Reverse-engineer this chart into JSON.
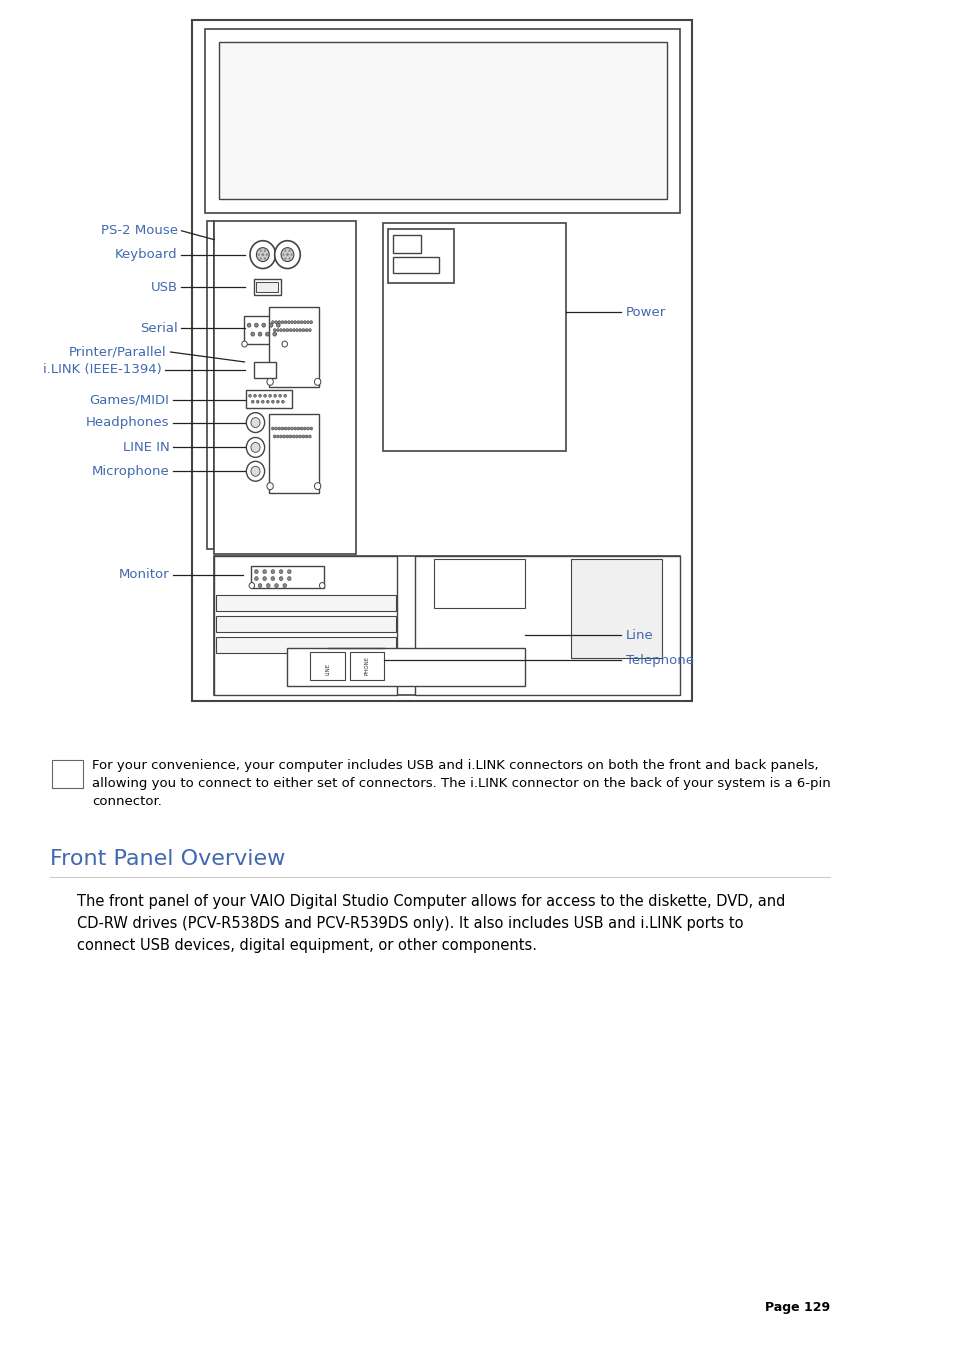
{
  "bg_color": "#ffffff",
  "label_color": "#4169B0",
  "line_color": "#222222",
  "diagram_color": "#444444",
  "note_text": "For your convenience, your computer includes USB and i.LINK connectors on both the front and back panels,\nallowing you to connect to either set of connectors. The i.LINK connector on the back of your system is a 6-pin\nconnector.",
  "section_title": "Front Panel Overview",
  "body_text": "The front panel of your VAIO Digital Studio Computer allows for access to the diskette, DVD, and\nCD-RW drives (PCV-R538DS and PCV-R539DS only). It also includes USB and i.LINK ports to\nconnect USB devices, digital equipment, or other components.",
  "page_number": "Page 129"
}
